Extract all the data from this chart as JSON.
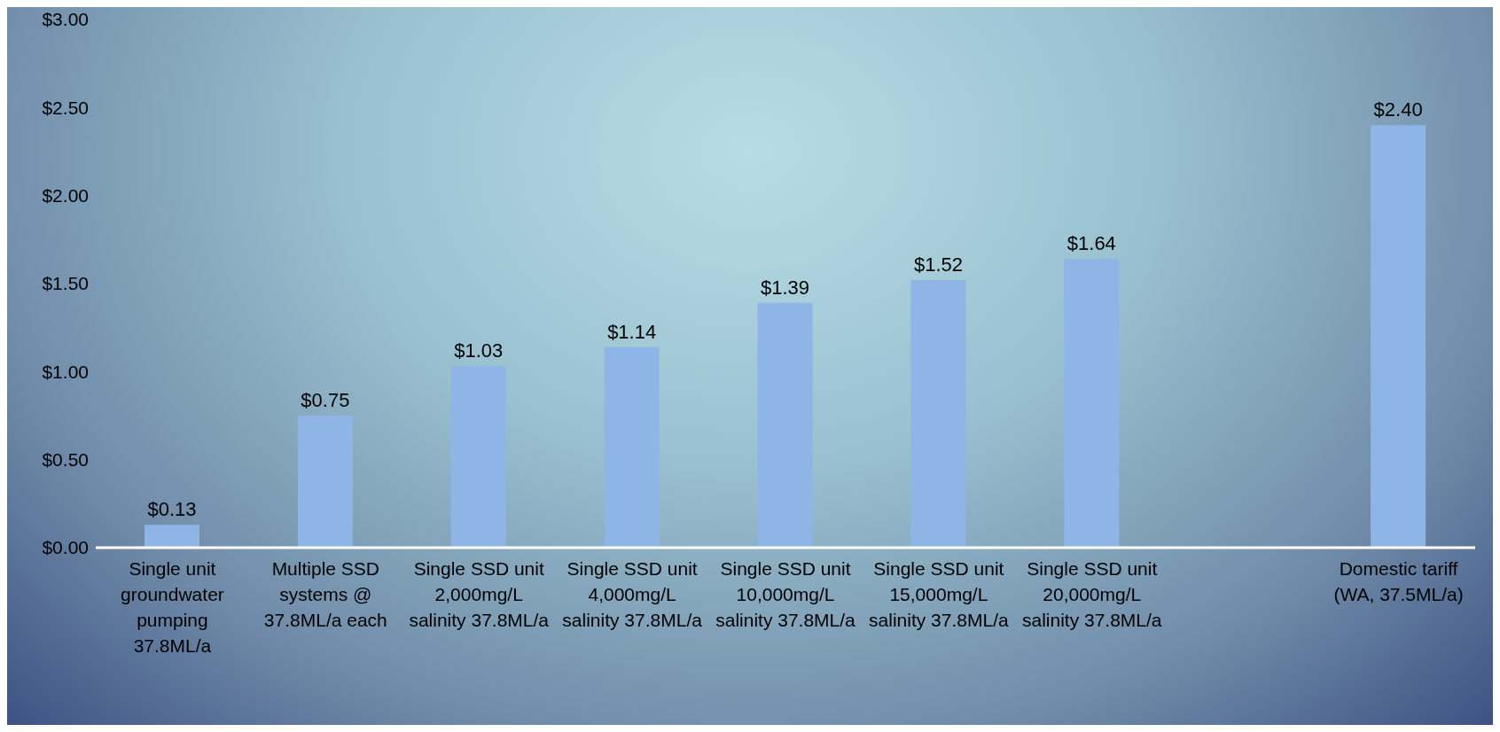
{
  "chart_data": {
    "type": "bar",
    "categories": [
      "Single unit groundwater pumping 37.8ML/a",
      "Multiple SSD systems @ 37.8ML/a each",
      "Single SSD unit 2,000mg/L salinity 37.8ML/a",
      "Single SSD unit 4,000mg/L salinity 37.8ML/a",
      "Single SSD unit 10,000mg/L salinity 37.8ML/a",
      "Single SSD unit 15,000mg/L salinity 37.8ML/a",
      "Single SSD unit 20,000mg/L salinity 37.8ML/a",
      null,
      "Domestic tariff (WA, 37.5ML/a)"
    ],
    "values": [
      0.13,
      0.75,
      1.03,
      1.14,
      1.39,
      1.52,
      1.64,
      null,
      2.4
    ],
    "value_labels": [
      "$0.13",
      "$0.75",
      "$1.03",
      "$1.14",
      "$1.39",
      "$1.52",
      "$1.64",
      null,
      "$2.40"
    ],
    "color": "#8fb5e6",
    "ylim": [
      0,
      3
    ],
    "yticks": [
      {
        "value": 0,
        "label": "$0.00"
      },
      {
        "value": 0.5,
        "label": "$0.50"
      },
      {
        "value": 1,
        "label": "$1.00"
      },
      {
        "value": 1.5,
        "label": "$1.50"
      },
      {
        "value": 2,
        "label": "$2.00"
      },
      {
        "value": 2.5,
        "label": "$2.50"
      },
      {
        "value": 3,
        "label": "$3.00"
      }
    ],
    "grid": false,
    "legend": false
  }
}
